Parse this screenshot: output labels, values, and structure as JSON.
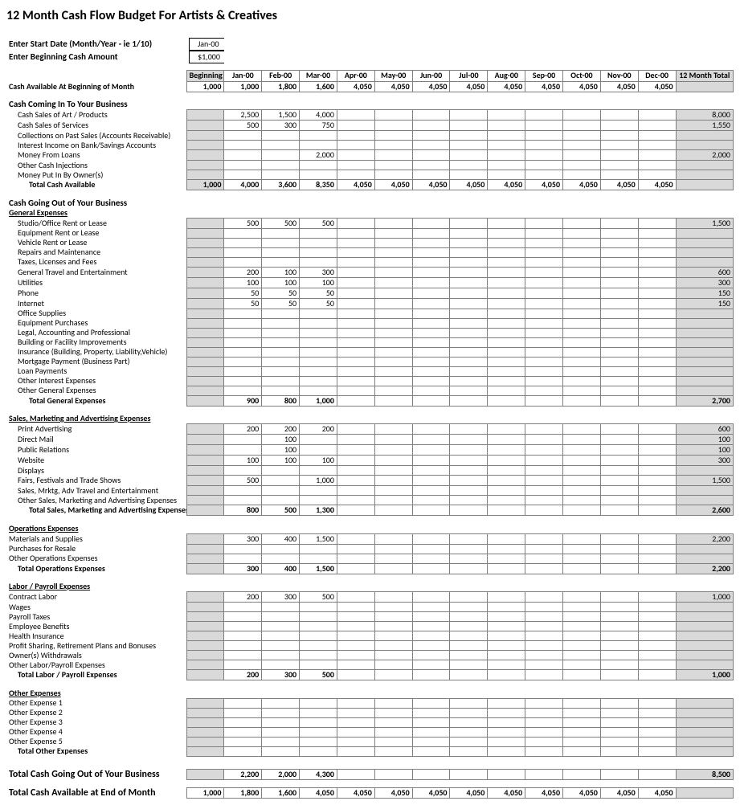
{
  "title": "12 Month Cash Flow Budget For Artists & Creatives",
  "inputs": {
    "start_label": "Enter Start Date (Month/Year - ie 1/10)",
    "start_value": "Jan-00",
    "cash_label": "Enter Beginning Cash Amount",
    "cash_value": "$1,000"
  },
  "columns": [
    "Beginning",
    "Jan-00",
    "Feb-00",
    "Mar-00",
    "Apr-00",
    "May-00",
    "Jun-00",
    "Jul-00",
    "Aug-00",
    "Sep-00",
    "Oct-00",
    "Nov-00",
    "Dec-00",
    "12 Month Total"
  ],
  "cash_available_label": "Cash Available At Beginning of Month",
  "cash_available": [
    "1,000",
    "1,000",
    "1,800",
    "1,600",
    "4,050",
    "4,050",
    "4,050",
    "4,050",
    "4,050",
    "4,050",
    "4,050",
    "4,050",
    "4,050",
    ""
  ],
  "sec_in": "Cash Coming In To Your Business",
  "rows_in": [
    {
      "l": "Cash Sales of Art / Products",
      "i": 1,
      "v": [
        "",
        "2,500",
        "1,500",
        "4,000",
        "",
        "",
        "",
        "",
        "",
        "",
        "",
        "",
        "",
        "8,000"
      ]
    },
    {
      "l": "Cash Sales of Services",
      "i": 1,
      "v": [
        "",
        "500",
        "300",
        "750",
        "",
        "",
        "",
        "",
        "",
        "",
        "",
        "",
        "",
        "1,550"
      ]
    },
    {
      "l": "Collections on Past Sales (Accounts Receivable)",
      "i": 1,
      "v": [
        "",
        "",
        "",
        "",
        "",
        "",
        "",
        "",
        "",
        "",
        "",
        "",
        "",
        ""
      ]
    },
    {
      "l": "Interest Income on Bank/Savings Accounts",
      "i": 1,
      "v": [
        "",
        "",
        "",
        "",
        "",
        "",
        "",
        "",
        "",
        "",
        "",
        "",
        "",
        ""
      ]
    },
    {
      "l": "Money From Loans",
      "i": 1,
      "v": [
        "",
        "",
        "",
        "2,000",
        "",
        "",
        "",
        "",
        "",
        "",
        "",
        "",
        "",
        "2,000"
      ]
    },
    {
      "l": "Other Cash Injections",
      "i": 1,
      "v": [
        "",
        "",
        "",
        "",
        "",
        "",
        "",
        "",
        "",
        "",
        "",
        "",
        "",
        ""
      ]
    },
    {
      "l": "Money Put In By Owner(s)",
      "i": 1,
      "v": [
        "",
        "",
        "",
        "",
        "",
        "",
        "",
        "",
        "",
        "",
        "",
        "",
        "",
        ""
      ]
    }
  ],
  "total_in_label": "Total Cash Available",
  "total_in": [
    "1,000",
    "4,000",
    "3,600",
    "8,350",
    "4,050",
    "4,050",
    "4,050",
    "4,050",
    "4,050",
    "4,050",
    "4,050",
    "4,050",
    "4,050",
    ""
  ],
  "sec_out": "Cash Going Out of Your Business",
  "sub_general": "General Expenses",
  "rows_general": [
    {
      "l": "Studio/Office Rent or Lease",
      "i": 1,
      "v": [
        "",
        "500",
        "500",
        "500",
        "",
        "",
        "",
        "",
        "",
        "",
        "",
        "",
        "",
        "1,500"
      ]
    },
    {
      "l": "Equipment Rent or Lease",
      "i": 1,
      "v": [
        "",
        "",
        "",
        "",
        "",
        "",
        "",
        "",
        "",
        "",
        "",
        "",
        "",
        ""
      ]
    },
    {
      "l": "Vehicle Rent or Lease",
      "i": 1,
      "v": [
        "",
        "",
        "",
        "",
        "",
        "",
        "",
        "",
        "",
        "",
        "",
        "",
        "",
        ""
      ]
    },
    {
      "l": "Repairs and Maintenance",
      "i": 1,
      "v": [
        "",
        "",
        "",
        "",
        "",
        "",
        "",
        "",
        "",
        "",
        "",
        "",
        "",
        ""
      ]
    },
    {
      "l": "Taxes, Licenses and Fees",
      "i": 1,
      "v": [
        "",
        "",
        "",
        "",
        "",
        "",
        "",
        "",
        "",
        "",
        "",
        "",
        "",
        ""
      ]
    },
    {
      "l": "General Travel and Entertainment",
      "i": 1,
      "v": [
        "",
        "200",
        "100",
        "300",
        "",
        "",
        "",
        "",
        "",
        "",
        "",
        "",
        "",
        "600"
      ]
    },
    {
      "l": "Utilities",
      "i": 1,
      "v": [
        "",
        "100",
        "100",
        "100",
        "",
        "",
        "",
        "",
        "",
        "",
        "",
        "",
        "",
        "300"
      ]
    },
    {
      "l": "Phone",
      "i": 1,
      "v": [
        "",
        "50",
        "50",
        "50",
        "",
        "",
        "",
        "",
        "",
        "",
        "",
        "",
        "",
        "150"
      ]
    },
    {
      "l": "Internet",
      "i": 1,
      "v": [
        "",
        "50",
        "50",
        "50",
        "",
        "",
        "",
        "",
        "",
        "",
        "",
        "",
        "",
        "150"
      ]
    },
    {
      "l": "Office Supplies",
      "i": 1,
      "v": [
        "",
        "",
        "",
        "",
        "",
        "",
        "",
        "",
        "",
        "",
        "",
        "",
        "",
        ""
      ]
    },
    {
      "l": "Equipment Purchases",
      "i": 1,
      "v": [
        "",
        "",
        "",
        "",
        "",
        "",
        "",
        "",
        "",
        "",
        "",
        "",
        "",
        ""
      ]
    },
    {
      "l": "Legal, Accounting and Professional",
      "i": 1,
      "v": [
        "",
        "",
        "",
        "",
        "",
        "",
        "",
        "",
        "",
        "",
        "",
        "",
        "",
        ""
      ]
    },
    {
      "l": "Building or Facility Improvements",
      "i": 1,
      "v": [
        "",
        "",
        "",
        "",
        "",
        "",
        "",
        "",
        "",
        "",
        "",
        "",
        "",
        ""
      ]
    },
    {
      "l": "Insurance (Building, Property, Liability,Vehicle)",
      "i": 1,
      "v": [
        "",
        "",
        "",
        "",
        "",
        "",
        "",
        "",
        "",
        "",
        "",
        "",
        "",
        ""
      ]
    },
    {
      "l": "Mortgage Payment (Business Part)",
      "i": 1,
      "v": [
        "",
        "",
        "",
        "",
        "",
        "",
        "",
        "",
        "",
        "",
        "",
        "",
        "",
        ""
      ]
    },
    {
      "l": "Loan Payments",
      "i": 1,
      "v": [
        "",
        "",
        "",
        "",
        "",
        "",
        "",
        "",
        "",
        "",
        "",
        "",
        "",
        ""
      ]
    },
    {
      "l": "Other Interest Expenses",
      "i": 1,
      "v": [
        "",
        "",
        "",
        "",
        "",
        "",
        "",
        "",
        "",
        "",
        "",
        "",
        "",
        ""
      ]
    },
    {
      "l": "Other General Expenses",
      "i": 1,
      "v": [
        "",
        "",
        "",
        "",
        "",
        "",
        "",
        "",
        "",
        "",
        "",
        "",
        "",
        ""
      ]
    }
  ],
  "total_general_label": "Total General Expenses",
  "total_general": [
    "",
    "900",
    "800",
    "1,000",
    "",
    "",
    "",
    "",
    "",
    "",
    "",
    "",
    "",
    "2,700"
  ],
  "sub_sales": "Sales, Marketing and Advertising Expenses",
  "rows_sales": [
    {
      "l": "Print Advertising",
      "i": 1,
      "v": [
        "",
        "200",
        "200",
        "200",
        "",
        "",
        "",
        "",
        "",
        "",
        "",
        "",
        "",
        "600"
      ]
    },
    {
      "l": "Direct Mail",
      "i": 1,
      "v": [
        "",
        "",
        "100",
        "",
        "",
        "",
        "",
        "",
        "",
        "",
        "",
        "",
        "",
        "100"
      ]
    },
    {
      "l": "Public Relations",
      "i": 1,
      "v": [
        "",
        "",
        "100",
        "",
        "",
        "",
        "",
        "",
        "",
        "",
        "",
        "",
        "",
        "100"
      ]
    },
    {
      "l": "Website",
      "i": 1,
      "v": [
        "",
        "100",
        "100",
        "100",
        "",
        "",
        "",
        "",
        "",
        "",
        "",
        "",
        "",
        "300"
      ]
    },
    {
      "l": "Displays",
      "i": 1,
      "v": [
        "",
        "",
        "",
        "",
        "",
        "",
        "",
        "",
        "",
        "",
        "",
        "",
        "",
        ""
      ]
    },
    {
      "l": "Fairs, Festivals and Trade Shows",
      "i": 1,
      "v": [
        "",
        "500",
        "",
        "1,000",
        "",
        "",
        "",
        "",
        "",
        "",
        "",
        "",
        "",
        "1,500"
      ]
    },
    {
      "l": "Sales, Mrktg, Adv Travel and Entertainment",
      "i": 1,
      "v": [
        "",
        "",
        "",
        "",
        "",
        "",
        "",
        "",
        "",
        "",
        "",
        "",
        "",
        ""
      ]
    },
    {
      "l": "Other Sales, Marketing and Advertising Expenses",
      "i": 1,
      "v": [
        "",
        "",
        "",
        "",
        "",
        "",
        "",
        "",
        "",
        "",
        "",
        "",
        "",
        ""
      ]
    }
  ],
  "total_sales_label": "Total Sales, Marketing and Advertising Expenses",
  "total_sales": [
    "",
    "800",
    "500",
    "1,300",
    "",
    "",
    "",
    "",
    "",
    "",
    "",
    "",
    "",
    "2,600"
  ],
  "sub_ops": "Operations Expenses",
  "rows_ops": [
    {
      "l": "Materials and Supplies",
      "i": 0,
      "v": [
        "",
        "300",
        "400",
        "1,500",
        "",
        "",
        "",
        "",
        "",
        "",
        "",
        "",
        "",
        "2,200"
      ]
    },
    {
      "l": "Purchases for Resale",
      "i": 0,
      "v": [
        "",
        "",
        "",
        "",
        "",
        "",
        "",
        "",
        "",
        "",
        "",
        "",
        "",
        ""
      ]
    },
    {
      "l": "Other Operations Expenses",
      "i": 0,
      "v": [
        "",
        "",
        "",
        "",
        "",
        "",
        "",
        "",
        "",
        "",
        "",
        "",
        "",
        ""
      ]
    }
  ],
  "total_ops_label": "Total Operations Expenses",
  "total_ops": [
    "",
    "300",
    "400",
    "1,500",
    "",
    "",
    "",
    "",
    "",
    "",
    "",
    "",
    "",
    "2,200"
  ],
  "sub_labor": "Labor / Payroll Expenses",
  "rows_labor": [
    {
      "l": "Contract Labor",
      "i": 0,
      "v": [
        "",
        "200",
        "300",
        "500",
        "",
        "",
        "",
        "",
        "",
        "",
        "",
        "",
        "",
        "1,000"
      ]
    },
    {
      "l": "Wages",
      "i": 0,
      "v": [
        "",
        "",
        "",
        "",
        "",
        "",
        "",
        "",
        "",
        "",
        "",
        "",
        "",
        ""
      ]
    },
    {
      "l": "Payroll Taxes",
      "i": 0,
      "v": [
        "",
        "",
        "",
        "",
        "",
        "",
        "",
        "",
        "",
        "",
        "",
        "",
        "",
        ""
      ]
    },
    {
      "l": "Employee Benefits",
      "i": 0,
      "v": [
        "",
        "",
        "",
        "",
        "",
        "",
        "",
        "",
        "",
        "",
        "",
        "",
        "",
        ""
      ]
    },
    {
      "l": "Health Insurance",
      "i": 0,
      "v": [
        "",
        "",
        "",
        "",
        "",
        "",
        "",
        "",
        "",
        "",
        "",
        "",
        "",
        ""
      ]
    },
    {
      "l": "Profit Sharing, Retirement Plans and Bonuses",
      "i": 0,
      "v": [
        "",
        "",
        "",
        "",
        "",
        "",
        "",
        "",
        "",
        "",
        "",
        "",
        "",
        ""
      ]
    },
    {
      "l": "Owner(s) Withdrawals",
      "i": 0,
      "v": [
        "",
        "",
        "",
        "",
        "",
        "",
        "",
        "",
        "",
        "",
        "",
        "",
        "",
        ""
      ]
    },
    {
      "l": "Other Labor/Payroll Expenses",
      "i": 0,
      "v": [
        "",
        "",
        "",
        "",
        "",
        "",
        "",
        "",
        "",
        "",
        "",
        "",
        "",
        ""
      ]
    }
  ],
  "total_labor_label": "Total Labor / Payroll Expenses",
  "total_labor": [
    "",
    "200",
    "300",
    "500",
    "",
    "",
    "",
    "",
    "",
    "",
    "",
    "",
    "",
    "1,000"
  ],
  "sub_other": "Other Expenses",
  "rows_other": [
    {
      "l": "Other Expense 1",
      "i": 0,
      "v": [
        "",
        "",
        "",
        "",
        "",
        "",
        "",
        "",
        "",
        "",
        "",
        "",
        "",
        ""
      ]
    },
    {
      "l": "Other Expense 2",
      "i": 0,
      "v": [
        "",
        "",
        "",
        "",
        "",
        "",
        "",
        "",
        "",
        "",
        "",
        "",
        "",
        ""
      ]
    },
    {
      "l": "Other Expense 3",
      "i": 0,
      "v": [
        "",
        "",
        "",
        "",
        "",
        "",
        "",
        "",
        "",
        "",
        "",
        "",
        "",
        ""
      ]
    },
    {
      "l": "Other Expense 4",
      "i": 0,
      "v": [
        "",
        "",
        "",
        "",
        "",
        "",
        "",
        "",
        "",
        "",
        "",
        "",
        "",
        ""
      ]
    },
    {
      "l": "Other Expense 5",
      "i": 0,
      "v": [
        "",
        "",
        "",
        "",
        "",
        "",
        "",
        "",
        "",
        "",
        "",
        "",
        "",
        ""
      ]
    }
  ],
  "total_other_label": "Total Other Expenses",
  "total_other": [
    "",
    "",
    "",
    "",
    "",
    "",
    "",
    "",
    "",
    "",
    "",
    "",
    "",
    ""
  ],
  "total_out_label": "Total Cash Going Out of Your Business",
  "total_out": [
    "",
    "2,200",
    "2,000",
    "4,300",
    "",
    "",
    "",
    "",
    "",
    "",
    "",
    "",
    "",
    "8,500"
  ],
  "end_label": "Total Cash Available at End of Month",
  "end": [
    "1,000",
    "1,800",
    "1,600",
    "4,050",
    "4,050",
    "4,050",
    "4,050",
    "4,050",
    "4,050",
    "4,050",
    "4,050",
    "4,050",
    "4,050",
    ""
  ]
}
